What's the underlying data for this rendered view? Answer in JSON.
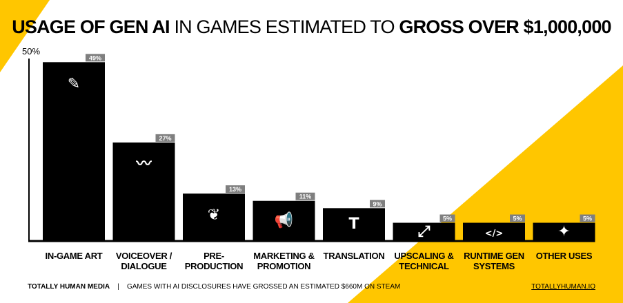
{
  "title": {
    "bold1": "USAGE OF GEN AI",
    "light": "IN GAMES ESTIMATED TO",
    "bold2": "GROSS OVER $1,000,000"
  },
  "colors": {
    "accent": "#FFC600",
    "bar": "#000000",
    "label_box": "#7f7f7f"
  },
  "chart_data": {
    "type": "bar",
    "title": "USAGE OF GEN AI IN GAMES ESTIMATED TO GROSS OVER $1,000,000",
    "ylim": [
      0,
      50
    ],
    "ytick_label": "50%",
    "grid": false,
    "categories": [
      "IN-GAME ART",
      "VOICEOVER / DIALOGUE",
      "PRE-PRODUCTION",
      "MARKETING & PROMOTION",
      "TRANSLATION",
      "UPSCALING & TECHNICAL",
      "RUNTIME GEN SYSTEMS",
      "OTHER USES"
    ],
    "category_lines": [
      [
        "IN-GAME ART"
      ],
      [
        "VOICEOVER /",
        "DIALOGUE"
      ],
      [
        "PRE-",
        "PRODUCTION"
      ],
      [
        "MARKETING &",
        "PROMOTION"
      ],
      [
        "TRANSLATION"
      ],
      [
        "UPSCALING &",
        "TECHNICAL"
      ],
      [
        "RUNTIME GEN",
        "SYSTEMS"
      ],
      [
        "OTHER USES"
      ]
    ],
    "values": [
      49,
      27,
      13,
      11,
      9,
      5,
      5,
      5
    ],
    "data_labels": [
      "49%",
      "27%",
      "13%",
      "11%",
      "9%",
      "5%",
      "5%",
      "5%"
    ],
    "icons": [
      "pencil-ruler-icon",
      "waveform-icon",
      "brain-icon",
      "megaphone-icon",
      "text-icon",
      "expand-icon",
      "code-icon",
      "magic-wand-icon"
    ]
  },
  "footer": {
    "brand": "TOTALLY HUMAN MEDIA",
    "separator": "|",
    "note": "GAMES WITH AI DISCLOSURES HAVE GROSSED AN ESTIMATED $660M ON STEAM",
    "link": "TOTALLYHUMAN.IO"
  }
}
